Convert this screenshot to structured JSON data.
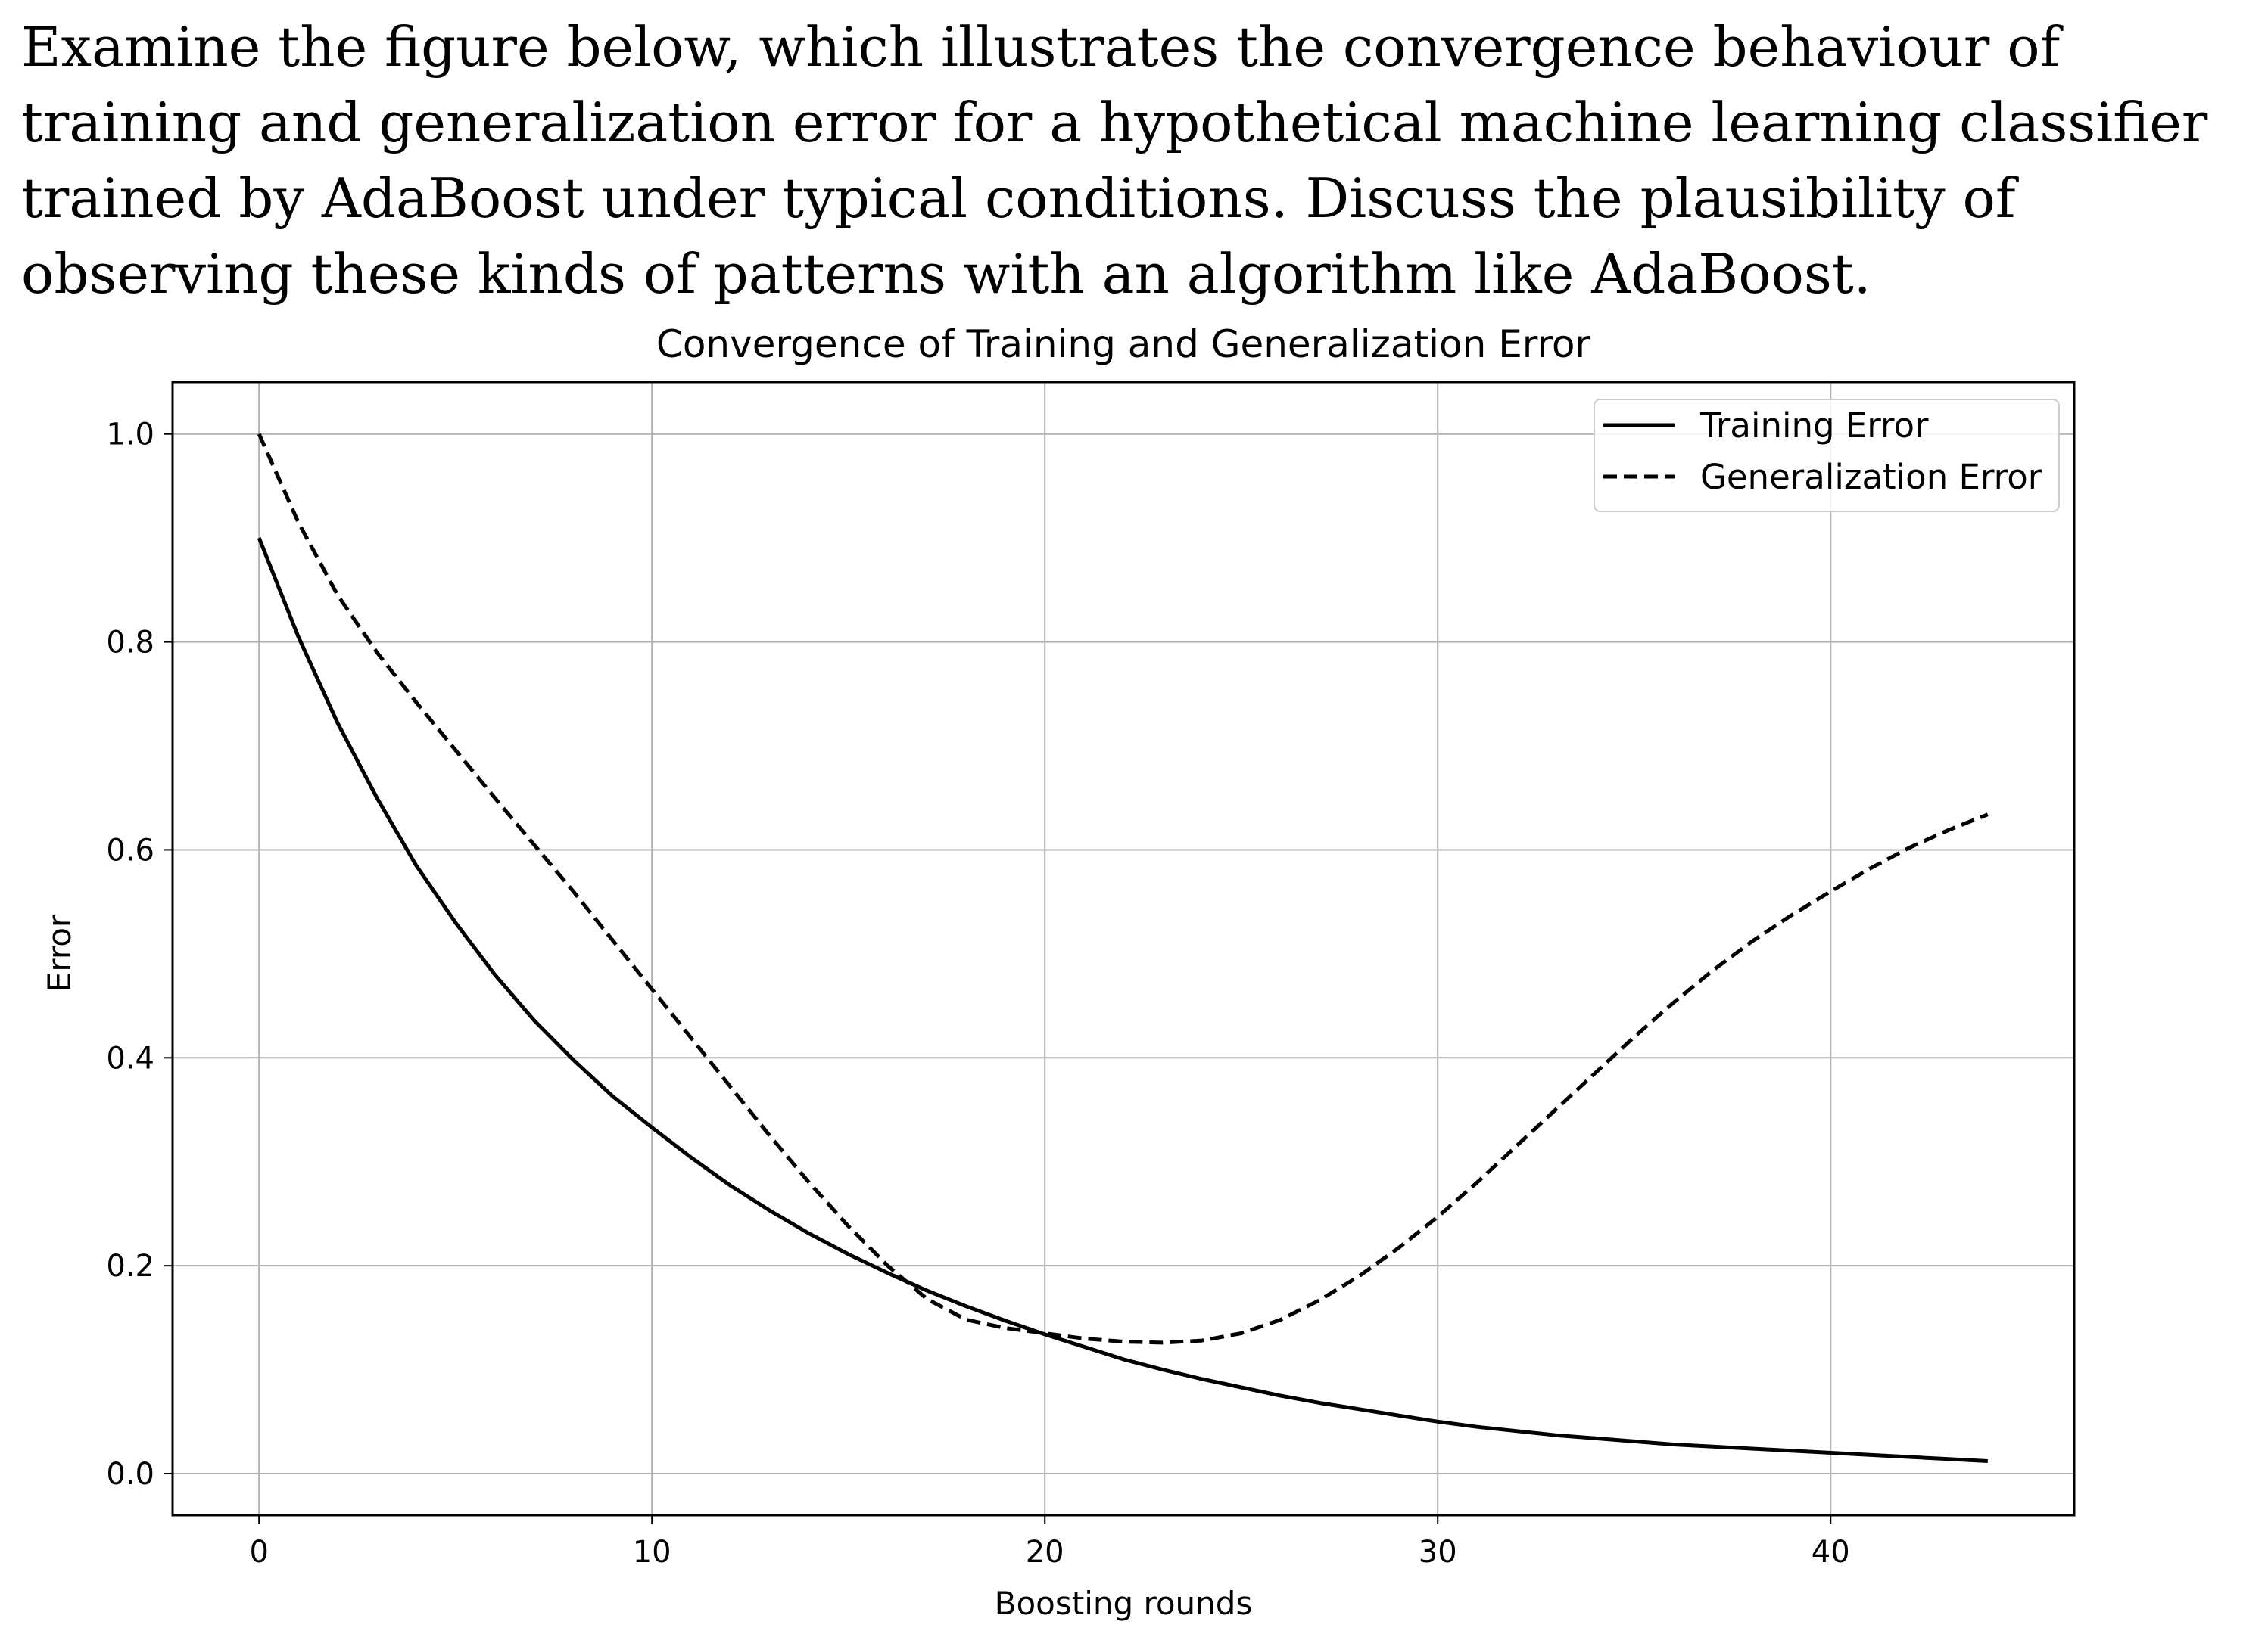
{
  "question": {
    "text": "Examine the figure below, which illustrates the convergence behaviour of training and generalization error for a hypothetical machine learning classifier trained by AdaBoost under typical conditions. Discuss the plausibility of observing these kinds of patterns with an algorithm like AdaBoost."
  },
  "chart_data": {
    "type": "line",
    "title": "Convergence of Training and Generalization Error",
    "xlabel": "Boosting rounds",
    "ylabel": "Error",
    "xlim": [
      -2.2,
      46.2
    ],
    "ylim": [
      -0.04,
      1.05
    ],
    "xticks": [
      0,
      10,
      20,
      30,
      40
    ],
    "yticks": [
      0.0,
      0.2,
      0.4,
      0.6,
      0.8,
      1.0
    ],
    "ytick_labels": [
      "0.0",
      "0.2",
      "0.4",
      "0.6",
      "0.8",
      "1.0"
    ],
    "grid": true,
    "legend_position": "top-right",
    "x": [
      0,
      1,
      2,
      3,
      4,
      5,
      6,
      7,
      8,
      9,
      10,
      11,
      12,
      13,
      14,
      15,
      16,
      17,
      18,
      19,
      20,
      21,
      22,
      23,
      24,
      25,
      26,
      27,
      28,
      29,
      30,
      31,
      32,
      33,
      34,
      35,
      36,
      37,
      38,
      39,
      40,
      41,
      42,
      43,
      44
    ],
    "series": [
      {
        "name": "Training Error",
        "style": "solid",
        "color": "#000000",
        "values": [
          0.9,
          0.805,
          0.722,
          0.65,
          0.585,
          0.53,
          0.48,
          0.436,
          0.398,
          0.363,
          0.333,
          0.304,
          0.277,
          0.253,
          0.231,
          0.211,
          0.193,
          0.176,
          0.161,
          0.147,
          0.134,
          0.122,
          0.11,
          0.1,
          0.091,
          0.083,
          0.075,
          0.068,
          0.062,
          0.056,
          0.05,
          0.045,
          0.041,
          0.037,
          0.034,
          0.031,
          0.028,
          0.026,
          0.024,
          0.022,
          0.02,
          0.018,
          0.016,
          0.014,
          0.012
        ]
      },
      {
        "name": "Generalization Error",
        "style": "dashed",
        "color": "#000000",
        "values": [
          1.0,
          0.915,
          0.845,
          0.79,
          0.742,
          0.696,
          0.65,
          0.605,
          0.56,
          0.513,
          0.466,
          0.419,
          0.372,
          0.325,
          0.28,
          0.238,
          0.2,
          0.168,
          0.148,
          0.14,
          0.135,
          0.13,
          0.127,
          0.126,
          0.128,
          0.135,
          0.148,
          0.167,
          0.19,
          0.217,
          0.247,
          0.28,
          0.315,
          0.35,
          0.385,
          0.42,
          0.453,
          0.484,
          0.512,
          0.537,
          0.56,
          0.582,
          0.602,
          0.619,
          0.634
        ]
      }
    ]
  }
}
